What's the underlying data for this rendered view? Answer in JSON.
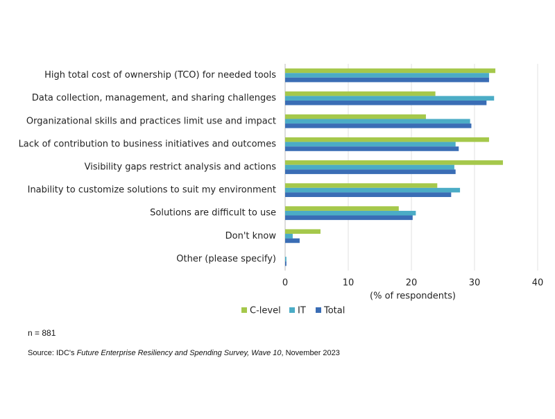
{
  "chart_data": {
    "type": "hbar",
    "categories": [
      "High total cost of ownership (TCO) for needed tools",
      "Data collection, management, and sharing challenges",
      "Organizational skills and practices limit use and impact",
      "Lack of contribution to business initiatives and outcomes",
      "Visibility gaps restrict analysis and actions",
      "Inability to customize solutions to suit my environment",
      "Solutions are difficult to use",
      "Don't know",
      "Other (please specify)"
    ],
    "series": [
      {
        "name": "C-level",
        "color": "#a5c84b",
        "values": [
          33.3,
          23.8,
          22.3,
          32.3,
          34.5,
          24.1,
          18.0,
          5.6,
          0
        ]
      },
      {
        "name": "IT",
        "color": "#4bacc6",
        "values": [
          32.3,
          33.1,
          29.3,
          27.0,
          26.8,
          27.7,
          20.7,
          1.2,
          0.2
        ]
      },
      {
        "name": "Total",
        "color": "#3a6db5",
        "values": [
          32.3,
          31.9,
          29.5,
          27.5,
          27.0,
          26.3,
          20.2,
          2.3,
          0.2
        ]
      }
    ],
    "x_label": "(% of respondents)",
    "xlim": [
      0,
      40
    ],
    "xticks": [
      0,
      10,
      20,
      30,
      40
    ],
    "grid": true
  },
  "footer": {
    "note": "n = 881",
    "source_prefix": "Source: IDC's ",
    "source_title": "Future Enterprise Resiliency and Spending Survey, Wave 10",
    "source_suffix": ", November 2023"
  }
}
